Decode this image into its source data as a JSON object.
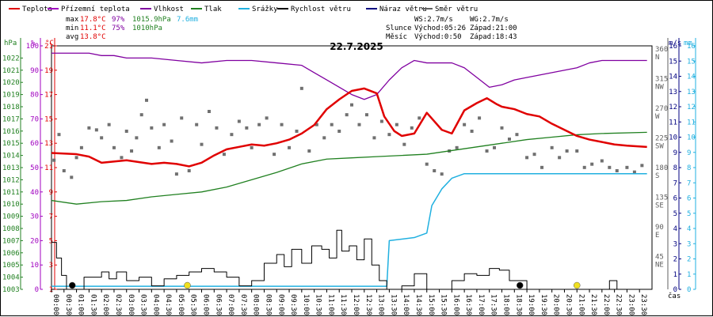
{
  "chart_data": {
    "type": "line",
    "title": "22.7.2025",
    "xlabel": "čas",
    "legend": [
      {
        "name": "Teplota",
        "color": "#e00000"
      },
      {
        "name": "Přízemní teplota",
        "color": "#a000c0"
      },
      {
        "name": "Vlhkost",
        "color": "#8000a0"
      },
      {
        "name": "Tlak",
        "color": "#208020"
      },
      {
        "name": "Srážky",
        "color": "#20b0e0"
      },
      {
        "name": "Rychlost větru",
        "color": "#000000"
      },
      {
        "name": "Náraz větru",
        "color": "#000080"
      },
      {
        "name": "Směr větru",
        "color": "#606060"
      }
    ],
    "stats": {
      "max": {
        "label": "max",
        "temp": "17.8°C",
        "hum": "97%",
        "press": "1015.9hPa",
        "rain": "7.6mm"
      },
      "min": {
        "label": "min",
        "temp": "11.1°C",
        "hum": "75%",
        "press": "1010hPa"
      },
      "avg": {
        "label": "avg",
        "temp": "13.8°C"
      }
    },
    "info": {
      "ws": "WS:2.7m/s",
      "wg": "WG:2.7m/s",
      "sun_label": "Slunce",
      "sunrise": "Východ:05:26",
      "sunset": "Západ:21:00",
      "moon_label": "Měsíc",
      "moonrise": "Východ:0:50",
      "moonset": "Západ:18:43"
    },
    "axes": {
      "hpa": {
        "unit": "hPa",
        "ticks": [
          1003,
          1004,
          1005,
          1006,
          1007,
          1008,
          1009,
          1010,
          1011,
          1012,
          1013,
          1014,
          1015,
          1016,
          1017,
          1018,
          1019,
          1020,
          1021,
          1022
        ]
      },
      "pct": {
        "unit": "%",
        "ticks": [
          0,
          10,
          20,
          30,
          40,
          50,
          60,
          70,
          80,
          90,
          100
        ]
      },
      "temp": {
        "unit": "°C",
        "ticks": [
          1,
          3,
          5,
          7,
          9,
          11,
          13,
          15,
          17,
          19,
          21
        ]
      },
      "dir": {
        "ticks": [
          {
            "deg": "45",
            "lab": "NE"
          },
          {
            "deg": "90",
            "lab": "E"
          },
          {
            "deg": "135",
            "lab": "SE"
          },
          {
            "deg": "180",
            "lab": "S"
          },
          {
            "deg": "225",
            "lab": "SW"
          },
          {
            "deg": "270",
            "lab": "W"
          },
          {
            "deg": "315",
            "lab": "NW"
          },
          {
            "deg": "360",
            "lab": "N"
          }
        ]
      },
      "ms": {
        "unit": "m/s",
        "ticks": [
          0,
          1,
          2,
          3,
          4,
          5,
          6,
          7,
          8,
          9,
          10,
          11,
          12,
          13,
          14,
          15,
          16
        ]
      },
      "mm": {
        "unit": "mm",
        "ticks": [
          0,
          1,
          2,
          3,
          4,
          5,
          6,
          7,
          8,
          9,
          10,
          11,
          12,
          13,
          14,
          15,
          16
        ]
      },
      "time_ticks": [
        "00:00",
        "00:30",
        "01:00",
        "01:30",
        "02:00",
        "02:30",
        "03:00",
        "03:30",
        "04:00",
        "04:30",
        "05:00",
        "05:30",
        "06:00",
        "06:30",
        "07:00",
        "07:30",
        "08:00",
        "08:30",
        "09:00",
        "09:30",
        "10:00",
        "10:30",
        "11:00",
        "11:30",
        "12:00",
        "12:30",
        "13:00",
        "13:30",
        "14:00",
        "14:30",
        "15:00",
        "15:30",
        "16:00",
        "16:30",
        "17:00",
        "17:30",
        "18:00",
        "18:30",
        "19:00",
        "19:30",
        "20:00",
        "20:30",
        "21:00",
        "21:30",
        "22:00",
        "22:30",
        "23:00",
        "23:30"
      ]
    },
    "series": {
      "temperature_c": [
        [
          0,
          12.2
        ],
        [
          1,
          12.1
        ],
        [
          1.5,
          11.9
        ],
        [
          2,
          11.4
        ],
        [
          3,
          11.6
        ],
        [
          4,
          11.3
        ],
        [
          4.5,
          11.4
        ],
        [
          5,
          11.3
        ],
        [
          5.5,
          11.1
        ],
        [
          6,
          11.4
        ],
        [
          6.5,
          12
        ],
        [
          7,
          12.5
        ],
        [
          7.5,
          12.7
        ],
        [
          8,
          12.9
        ],
        [
          8.5,
          12.8
        ],
        [
          9,
          13
        ],
        [
          9.5,
          13.3
        ],
        [
          10,
          13.8
        ],
        [
          10.5,
          14.5
        ],
        [
          11,
          15.8
        ],
        [
          11.5,
          16.6
        ],
        [
          12,
          17.3
        ],
        [
          12.5,
          17.5
        ],
        [
          13,
          17.1
        ],
        [
          13.3,
          15.2
        ],
        [
          13.7,
          14
        ],
        [
          14,
          13.6
        ],
        [
          14.5,
          13.8
        ],
        [
          15,
          15.5
        ],
        [
          15.3,
          14.8
        ],
        [
          15.6,
          14.1
        ],
        [
          16,
          13.8
        ],
        [
          16.5,
          15.7
        ],
        [
          17,
          16.3
        ],
        [
          17.4,
          16.7
        ],
        [
          17.8,
          16.2
        ],
        [
          18,
          16
        ],
        [
          18.5,
          15.8
        ],
        [
          19,
          15.4
        ],
        [
          19.5,
          15.2
        ],
        [
          20,
          14.6
        ],
        [
          20.5,
          14.1
        ],
        [
          21,
          13.6
        ],
        [
          21.5,
          13.3
        ],
        [
          22,
          13.1
        ],
        [
          22.5,
          12.9
        ],
        [
          23,
          12.8
        ],
        [
          23.8,
          12.7
        ]
      ],
      "humidity_pct": [
        [
          0,
          97
        ],
        [
          1.5,
          97
        ],
        [
          2,
          96
        ],
        [
          2.5,
          96
        ],
        [
          3,
          95
        ],
        [
          4,
          95
        ],
        [
          5,
          94
        ],
        [
          6,
          93
        ],
        [
          7,
          94
        ],
        [
          8,
          94
        ],
        [
          9,
          93
        ],
        [
          10,
          92
        ],
        [
          10.5,
          89
        ],
        [
          11,
          86
        ],
        [
          11.5,
          83
        ],
        [
          12,
          80
        ],
        [
          12.5,
          78
        ],
        [
          13,
          80
        ],
        [
          13.5,
          86
        ],
        [
          14,
          91
        ],
        [
          14.5,
          94
        ],
        [
          15,
          93
        ],
        [
          16,
          93
        ],
        [
          16.5,
          91
        ],
        [
          17,
          87
        ],
        [
          17.5,
          83
        ],
        [
          18,
          84
        ],
        [
          18.5,
          86
        ],
        [
          19,
          87
        ],
        [
          20,
          89
        ],
        [
          21,
          91
        ],
        [
          21.5,
          93
        ],
        [
          22,
          94
        ],
        [
          23.8,
          94
        ]
      ],
      "pressure_hpa": [
        [
          0,
          1010.3
        ],
        [
          1,
          1010
        ],
        [
          2,
          1010.2
        ],
        [
          3,
          1010.3
        ],
        [
          4,
          1010.6
        ],
        [
          5,
          1010.8
        ],
        [
          6,
          1011
        ],
        [
          7,
          1011.4
        ],
        [
          8,
          1012
        ],
        [
          9,
          1012.6
        ],
        [
          10,
          1013.3
        ],
        [
          11,
          1013.7
        ],
        [
          12,
          1013.8
        ],
        [
          13,
          1013.9
        ],
        [
          14,
          1014
        ],
        [
          15,
          1014.1
        ],
        [
          16,
          1014.4
        ],
        [
          17,
          1014.7
        ],
        [
          18,
          1015
        ],
        [
          19,
          1015.3
        ],
        [
          20,
          1015.5
        ],
        [
          21,
          1015.7
        ],
        [
          22,
          1015.8
        ],
        [
          23.8,
          1015.9
        ]
      ],
      "rain_mm": [
        [
          0,
          0.2
        ],
        [
          13.4,
          0.2
        ],
        [
          13.5,
          3.2
        ],
        [
          14.5,
          3.4
        ],
        [
          15,
          3.7
        ],
        [
          15.2,
          5.5
        ],
        [
          15.6,
          6.6
        ],
        [
          16,
          7.3
        ],
        [
          16.5,
          7.6
        ],
        [
          23.8,
          7.6
        ]
      ],
      "wind_ms": [
        [
          0,
          2.7
        ],
        [
          0.2,
          1.8
        ],
        [
          0.4,
          0.8
        ],
        [
          0.6,
          0
        ],
        [
          1,
          0
        ],
        [
          1.3,
          0.7
        ],
        [
          1.6,
          0.7
        ],
        [
          2,
          1
        ],
        [
          2.3,
          0.6
        ],
        [
          2.6,
          1
        ],
        [
          3,
          0.5
        ],
        [
          3.5,
          0.7
        ],
        [
          4,
          0.2
        ],
        [
          4.5,
          0.6
        ],
        [
          5,
          0.8
        ],
        [
          5.5,
          1
        ],
        [
          6,
          1.2
        ],
        [
          6.5,
          1
        ],
        [
          7,
          0.7
        ],
        [
          7.5,
          0.2
        ],
        [
          8,
          0.5
        ],
        [
          8.5,
          1.5
        ],
        [
          9,
          2
        ],
        [
          9.3,
          1.3
        ],
        [
          9.6,
          2.3
        ],
        [
          10,
          1.5
        ],
        [
          10.4,
          2.5
        ],
        [
          10.8,
          2.3
        ],
        [
          11.1,
          1.8
        ],
        [
          11.4,
          3.4
        ],
        [
          11.6,
          2.2
        ],
        [
          11.9,
          2.5
        ],
        [
          12.2,
          1.7
        ],
        [
          12.5,
          2.9
        ],
        [
          12.8,
          1.4
        ],
        [
          13.1,
          0.5
        ],
        [
          13.4,
          0
        ],
        [
          14,
          0.2
        ],
        [
          14.5,
          0.9
        ],
        [
          15,
          0
        ],
        [
          16,
          0.5
        ],
        [
          16.5,
          0.9
        ],
        [
          17,
          0.8
        ],
        [
          17.5,
          1.2
        ],
        [
          17.9,
          1.1
        ],
        [
          18.3,
          0.5
        ],
        [
          19,
          0
        ],
        [
          22,
          0
        ],
        [
          22.3,
          0.5
        ],
        [
          22.6,
          0
        ],
        [
          23.8,
          0
        ]
      ],
      "wind_dir_deg": [
        [
          0.1,
          196
        ],
        [
          0.3,
          235
        ],
        [
          0.5,
          180
        ],
        [
          0.8,
          170
        ],
        [
          1,
          200
        ],
        [
          1.2,
          215
        ],
        [
          1.5,
          245
        ],
        [
          1.8,
          242
        ],
        [
          2,
          230
        ],
        [
          2.3,
          250
        ],
        [
          2.5,
          215
        ],
        [
          2.8,
          200
        ],
        [
          3,
          240
        ],
        [
          3.2,
          210
        ],
        [
          3.4,
          230
        ],
        [
          3.6,
          265
        ],
        [
          3.8,
          287
        ],
        [
          4,
          245
        ],
        [
          4.3,
          215
        ],
        [
          4.5,
          250
        ],
        [
          4.8,
          225
        ],
        [
          5,
          175
        ],
        [
          5.2,
          260
        ],
        [
          5.5,
          180
        ],
        [
          5.8,
          250
        ],
        [
          6,
          220
        ],
        [
          6.3,
          270
        ],
        [
          6.6,
          245
        ],
        [
          6.9,
          205
        ],
        [
          7.2,
          235
        ],
        [
          7.5,
          255
        ],
        [
          7.8,
          245
        ],
        [
          8,
          215
        ],
        [
          8.3,
          250
        ],
        [
          8.6,
          260
        ],
        [
          8.9,
          205
        ],
        [
          9.2,
          250
        ],
        [
          9.5,
          215
        ],
        [
          9.8,
          240
        ],
        [
          10,
          305
        ],
        [
          10.3,
          210
        ],
        [
          10.6,
          250
        ],
        [
          10.9,
          230
        ],
        [
          11.2,
          250
        ],
        [
          11.5,
          240
        ],
        [
          11.8,
          265
        ],
        [
          12,
          280
        ],
        [
          12.3,
          250
        ],
        [
          12.6,
          265
        ],
        [
          12.9,
          230
        ],
        [
          13.2,
          255
        ],
        [
          13.5,
          235
        ],
        [
          13.8,
          250
        ],
        [
          14.1,
          220
        ],
        [
          14.4,
          245
        ],
        [
          14.7,
          260
        ],
        [
          15,
          190
        ],
        [
          15.3,
          180
        ],
        [
          15.6,
          175
        ],
        [
          15.9,
          210
        ],
        [
          16.2,
          215
        ],
        [
          16.5,
          250
        ],
        [
          16.8,
          240
        ],
        [
          17.1,
          260
        ],
        [
          17.4,
          210
        ],
        [
          17.7,
          215
        ],
        [
          18,
          245
        ],
        [
          18.3,
          228
        ],
        [
          18.6,
          235
        ],
        [
          19,
          200
        ],
        [
          19.3,
          205
        ],
        [
          19.6,
          185
        ],
        [
          20,
          215
        ],
        [
          20.3,
          200
        ],
        [
          20.6,
          210
        ],
        [
          21,
          210
        ],
        [
          21.3,
          185
        ],
        [
          21.6,
          190
        ],
        [
          22,
          195
        ],
        [
          22.3,
          185
        ],
        [
          22.6,
          180
        ],
        [
          23,
          185
        ],
        [
          23.3,
          178
        ],
        [
          23.6,
          188
        ]
      ]
    },
    "markers": [
      {
        "kind": "moonrise",
        "hour": 0.83,
        "color": "#000000"
      },
      {
        "kind": "sunrise",
        "hour": 5.43,
        "color": "#f0e020"
      },
      {
        "kind": "moonset",
        "hour": 18.72,
        "color": "#000000"
      },
      {
        "kind": "sunset",
        "hour": 21.0,
        "color": "#f0e020"
      }
    ]
  }
}
